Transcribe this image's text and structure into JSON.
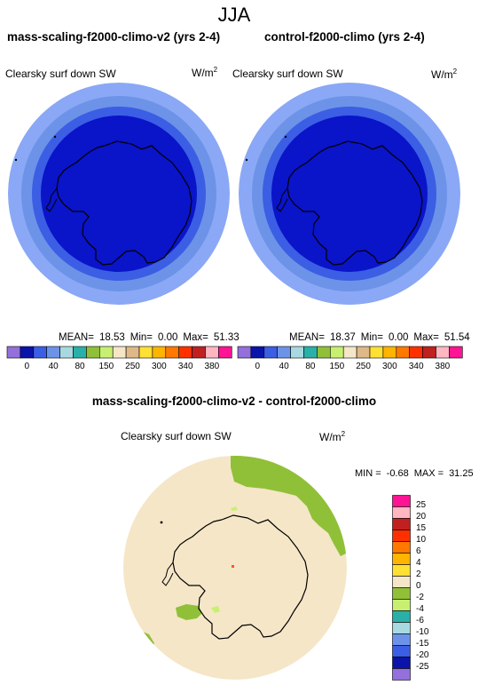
{
  "season": "JJA",
  "panels": [
    {
      "title": "mass-scaling-f2000-climo-v2 (yrs 2-4)",
      "variable": "Clearsky surf down SW",
      "units": "W/m",
      "units_exp": "2",
      "mean_label": "MEAN=",
      "mean": "18.53",
      "min_label": "Min=",
      "min": "0.00",
      "max_label": "Max=",
      "max": "51.33"
    },
    {
      "title": "control-f2000-climo (yrs 2-4)",
      "variable": "Clearsky surf down SW",
      "units": "W/m",
      "units_exp": "2",
      "mean_label": "MEAN=",
      "mean": "18.37",
      "min_label": "Min=",
      "min": "0.00",
      "max_label": "Max=",
      "max": "51.54"
    }
  ],
  "field_colorbar": {
    "labels": [
      "0",
      "40",
      "80",
      "150",
      "250",
      "300",
      "340",
      "380"
    ],
    "colors": [
      "#9370db",
      "#0a14aa",
      "#3b5ee4",
      "#6d93e8",
      "#a8d8e0",
      "#2ab0a8",
      "#90c038",
      "#c8f070",
      "#f5e6c8",
      "#deb887",
      "#ffe033",
      "#ffb400",
      "#ff7800",
      "#ff3000",
      "#c02020",
      "#ffb6c1",
      "#ff1493"
    ]
  },
  "diff": {
    "title": "mass-scaling-f2000-climo-v2 - control-f2000-climo",
    "variable": "Clearsky surf down SW",
    "units": "W/m",
    "units_exp": "2",
    "min_label": "MIN =",
    "min": "-0.68",
    "max_label": "MAX =",
    "max": "31.25",
    "colorbar": {
      "labels": [
        "25",
        "20",
        "15",
        "10",
        "6",
        "4",
        "2",
        "0",
        "-2",
        "-4",
        "-6",
        "-10",
        "-15",
        "-20",
        "-25"
      ],
      "colors": [
        "#ff1493",
        "#ffb6c1",
        "#c02020",
        "#ff3000",
        "#ff7800",
        "#ffb400",
        "#ffe033",
        "#f5e6c8",
        "#90c038",
        "#c8f070",
        "#2ab0a8",
        "#a8d8e0",
        "#6d93e8",
        "#3b5ee4",
        "#0a14aa",
        "#9370db"
      ]
    }
  }
}
